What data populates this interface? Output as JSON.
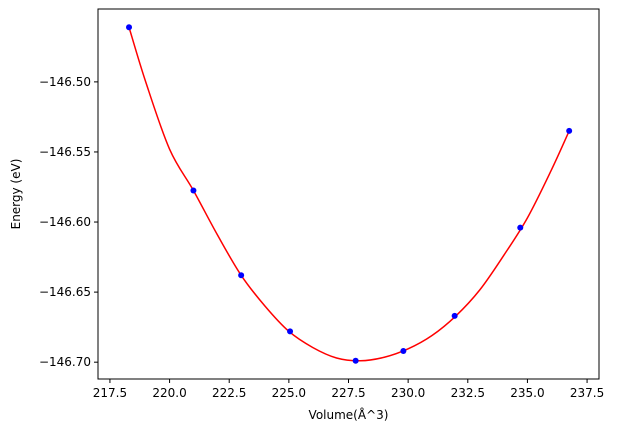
{
  "chart_data": {
    "type": "scatter",
    "title": "",
    "xlabel": "Volume(Å^3)",
    "ylabel": "Energy (eV)",
    "xlim": [
      217.0,
      238.0
    ],
    "ylim": [
      -146.712,
      -146.448
    ],
    "xticks": [
      217.5,
      220.0,
      222.5,
      225.0,
      227.5,
      230.0,
      232.5,
      235.0,
      237.5
    ],
    "xtick_labels": [
      "217.5",
      "220.0",
      "222.5",
      "225.0",
      "227.5",
      "230.0",
      "232.5",
      "235.0",
      "237.5"
    ],
    "yticks": [
      -146.5,
      -146.55,
      -146.6,
      -146.65,
      -146.7
    ],
    "ytick_labels": [
      "−146.50",
      "−146.55",
      "−146.60",
      "−146.65",
      "−146.70"
    ],
    "grid": false,
    "series": [
      {
        "kind": "points",
        "color": "#0000ff",
        "x": [
          218.3,
          221.0,
          223.0,
          225.05,
          227.8,
          229.8,
          231.95,
          234.7,
          236.75
        ],
        "y": [
          -146.461,
          -146.5775,
          -146.638,
          -146.678,
          -146.699,
          -146.692,
          -146.667,
          -146.604,
          -146.535
        ]
      },
      {
        "kind": "fit-curve",
        "color": "#ff0000",
        "x": [
          218.3,
          219.0,
          220.0,
          221.0,
          222.0,
          223.0,
          224.0,
          225.0,
          226.0,
          227.0,
          228.0,
          229.0,
          230.0,
          231.0,
          232.0,
          233.0,
          234.0,
          235.0,
          236.0,
          236.75
        ],
        "y": [
          -146.461,
          -146.5,
          -146.548,
          -146.5775,
          -146.609,
          -146.638,
          -146.66,
          -146.678,
          -146.6895,
          -146.697,
          -146.699,
          -146.6965,
          -146.6905,
          -146.681,
          -146.667,
          -146.6485,
          -146.624,
          -146.597,
          -146.563,
          -146.535
        ]
      }
    ]
  }
}
